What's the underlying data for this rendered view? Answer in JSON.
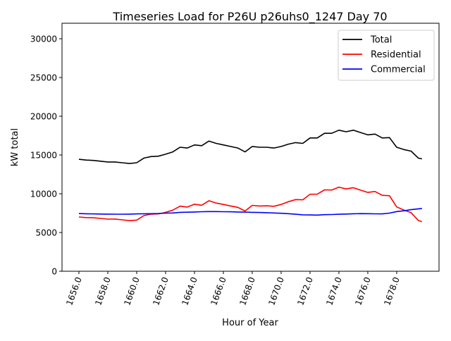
{
  "chart_data": {
    "type": "line",
    "title": "Timeseries Load for P26U p26uhs0_1247  Day 70",
    "xlabel": "Hour of Year",
    "ylabel": "kW total",
    "xlim": [
      1654.83,
      1680.93
    ],
    "ylim": [
      0,
      32000
    ],
    "xticks": [
      1656,
      1658,
      1660,
      1662,
      1664,
      1666,
      1668,
      1670,
      1672,
      1674,
      1676,
      1678
    ],
    "xtick_labels": [
      "1656.0",
      "1658.0",
      "1660.0",
      "1662.0",
      "1664.0",
      "1666.0",
      "1668.0",
      "1670.0",
      "1672.0",
      "1674.0",
      "1676.0",
      "1678.0"
    ],
    "yticks": [
      0,
      5000,
      10000,
      15000,
      20000,
      25000,
      30000
    ],
    "ytick_labels": [
      "0",
      "5000",
      "10000",
      "15000",
      "20000",
      "25000",
      "30000"
    ],
    "grid": false,
    "legend_position": "top-right",
    "x": [
      1656,
      1656.5,
      1657,
      1657.5,
      1658,
      1658.5,
      1659,
      1659.5,
      1660,
      1660.5,
      1661,
      1661.5,
      1662,
      1662.5,
      1663,
      1663.5,
      1664,
      1664.5,
      1665,
      1665.5,
      1666,
      1666.5,
      1667,
      1667.5,
      1668,
      1668.5,
      1669,
      1669.5,
      1670,
      1670.5,
      1671,
      1671.5,
      1672,
      1672.5,
      1673,
      1673.5,
      1674,
      1674.5,
      1675,
      1675.5,
      1676,
      1676.5,
      1677,
      1677.5,
      1678,
      1678.5,
      1679,
      1679.5,
      1679.75
    ],
    "series": [
      {
        "name": "Total",
        "color": "#000000",
        "values": [
          14450,
          14350,
          14300,
          14200,
          14100,
          14100,
          14000,
          13900,
          14000,
          14600,
          14800,
          14850,
          15100,
          15400,
          16000,
          15900,
          16300,
          16200,
          16800,
          16500,
          16300,
          16100,
          15900,
          15400,
          16100,
          16000,
          16000,
          15900,
          16100,
          16400,
          16600,
          16500,
          17200,
          17200,
          17800,
          17800,
          18200,
          18000,
          18200,
          17900,
          17600,
          17700,
          17200,
          17250,
          16000,
          15700,
          15500,
          14600,
          14500
        ]
      },
      {
        "name": "Residential",
        "color": "#ff0000",
        "values": [
          7000,
          6930,
          6900,
          6820,
          6730,
          6740,
          6640,
          6530,
          6600,
          7180,
          7370,
          7400,
          7600,
          7880,
          8400,
          8280,
          8650,
          8520,
          9100,
          8800,
          8620,
          8430,
          8250,
          7770,
          8500,
          8420,
          8450,
          8380,
          8620,
          8970,
          9250,
          9220,
          9940,
          9950,
          10500,
          10480,
          10850,
          10620,
          10780,
          10460,
          10170,
          10290,
          9800,
          9750,
          8300,
          7900,
          7550,
          6550,
          6400
        ]
      },
      {
        "name": "Commercial",
        "color": "#0000ff",
        "values": [
          7450,
          7420,
          7400,
          7380,
          7370,
          7360,
          7360,
          7370,
          7400,
          7420,
          7430,
          7450,
          7500,
          7520,
          7600,
          7620,
          7650,
          7680,
          7700,
          7700,
          7680,
          7670,
          7650,
          7630,
          7600,
          7580,
          7550,
          7520,
          7480,
          7430,
          7350,
          7280,
          7260,
          7250,
          7300,
          7320,
          7350,
          7380,
          7420,
          7440,
          7430,
          7410,
          7400,
          7500,
          7700,
          7800,
          7950,
          8050,
          8100
        ]
      }
    ]
  }
}
